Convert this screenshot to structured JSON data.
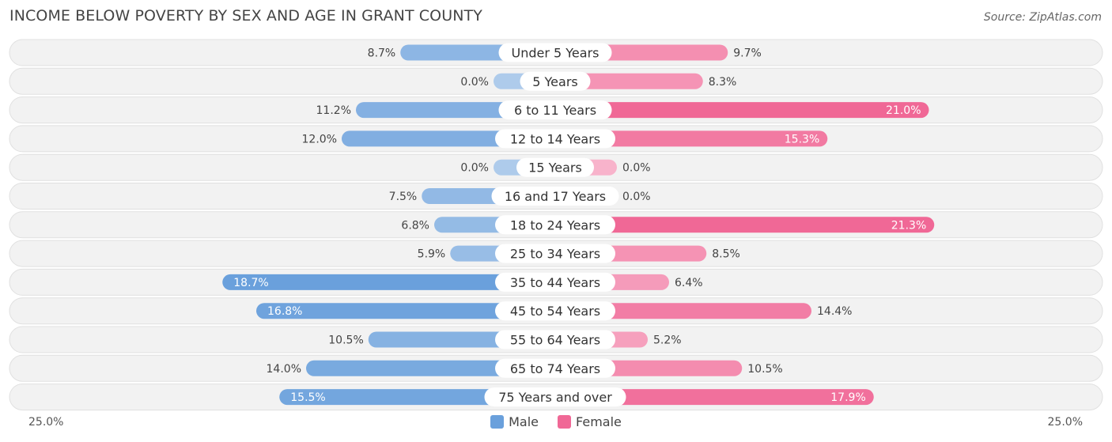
{
  "title": "INCOME BELOW POVERTY BY SEX AND AGE IN GRANT COUNTY",
  "source": "Source: ZipAtlas.com",
  "colors": {
    "male_strong": "#6aa0dc",
    "male_light": "#aecbeb",
    "female_strong": "#f06896",
    "female_light": "#f8b3cb"
  },
  "legend": {
    "male": "Male",
    "female": "Female"
  },
  "axis": {
    "left_label": "25.0%",
    "right_label": "25.0%"
  },
  "chart_data": {
    "type": "bar",
    "orientation": "horizontal-diverging",
    "title": "INCOME BELOW POVERTY BY SEX AND AGE IN GRANT COUNTY",
    "xlim": [
      -25,
      25
    ],
    "categories": [
      "Under 5 Years",
      "5 Years",
      "6 to 11 Years",
      "12 to 14 Years",
      "15 Years",
      "16 and 17 Years",
      "18 to 24 Years",
      "25 to 34 Years",
      "35 to 44 Years",
      "45 to 54 Years",
      "55 to 64 Years",
      "65 to 74 Years",
      "75 Years and over"
    ],
    "series": [
      {
        "name": "Male",
        "values": [
          8.7,
          0.0,
          11.2,
          12.0,
          0.0,
          7.5,
          6.8,
          5.9,
          18.7,
          16.8,
          10.5,
          14.0,
          15.5
        ],
        "labels": [
          "8.7%",
          "0.0%",
          "11.2%",
          "12.0%",
          "0.0%",
          "7.5%",
          "6.8%",
          "5.9%",
          "18.7%",
          "16.8%",
          "10.5%",
          "14.0%",
          "15.5%"
        ]
      },
      {
        "name": "Female",
        "values": [
          9.7,
          8.3,
          21.0,
          15.3,
          0.0,
          0.0,
          21.3,
          8.5,
          6.4,
          14.4,
          5.2,
          10.5,
          17.9
        ],
        "labels": [
          "9.7%",
          "8.3%",
          "21.0%",
          "15.3%",
          "0.0%",
          "0.0%",
          "21.3%",
          "8.5%",
          "6.4%",
          "14.4%",
          "5.2%",
          "10.5%",
          "17.9%"
        ]
      }
    ]
  }
}
